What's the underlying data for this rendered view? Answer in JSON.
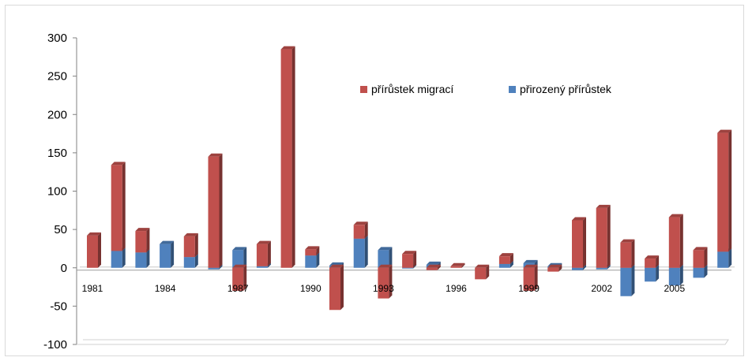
{
  "chart_data": {
    "type": "bar",
    "stacked": true,
    "title": "",
    "xlabel": "",
    "ylabel": "",
    "ylim": [
      -100,
      300
    ],
    "yticks": [
      -100,
      -50,
      0,
      50,
      100,
      150,
      200,
      250,
      300
    ],
    "grid": false,
    "legend_position": "top-right",
    "years": [
      1981,
      1982,
      1983,
      1984,
      1985,
      1986,
      1987,
      1988,
      1989,
      1990,
      1991,
      1992,
      1993,
      1994,
      1995,
      1996,
      1997,
      1998,
      1999,
      2000,
      2001,
      2002,
      2003,
      2004,
      2005,
      2006,
      2007
    ],
    "xtick_labels": [
      "1981",
      "1984",
      "1987",
      "1990",
      "1993",
      "1996",
      "1999",
      "2002",
      "2005"
    ],
    "xtick_years": [
      1981,
      1984,
      1987,
      1990,
      1993,
      1996,
      1999,
      2002,
      2005
    ],
    "series": [
      {
        "name": "přírůstek migrací",
        "color": "#c0504d",
        "values": [
          42,
          112,
          28,
          0,
          27,
          145,
          -30,
          29,
          285,
          8,
          -55,
          18,
          -40,
          18,
          -3,
          2,
          -15,
          10,
          -30,
          -5,
          62,
          78,
          33,
          12,
          66,
          23,
          155
        ]
      },
      {
        "name": "přirozený přírůstek",
        "color": "#4f81bd",
        "values": [
          0,
          22,
          20,
          31,
          14,
          -2,
          23,
          2,
          0,
          16,
          3,
          38,
          23,
          -1,
          4,
          0,
          0,
          5,
          6,
          2,
          -3,
          -2,
          -37,
          -18,
          -23,
          -13,
          21
        ]
      }
    ]
  }
}
